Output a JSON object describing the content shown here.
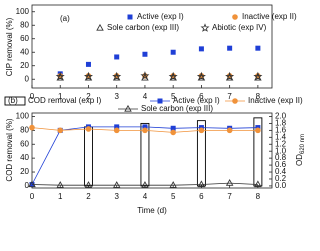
{
  "chart_data": [
    {
      "type": "scatter",
      "panel_label": "(a)",
      "ylabel": "CIP removal (%)",
      "x": [
        1,
        2,
        3,
        4,
        5,
        6,
        7,
        8
      ],
      "xlim": [
        0,
        8.5
      ],
      "xticks": [
        0,
        1,
        2,
        3,
        4,
        5,
        6,
        7,
        8
      ],
      "ylim": [
        -13,
        110
      ],
      "yticks": [
        0,
        20,
        40,
        60,
        80,
        100
      ],
      "series": [
        {
          "name": "Active (exp I)",
          "color": "#1f3fd6",
          "marker": "square",
          "values": [
            8,
            22,
            33,
            37,
            40,
            45,
            46,
            46
          ]
        },
        {
          "name": "Inactive (exp II)",
          "color": "#f0923a",
          "marker": "circle",
          "values": [
            5,
            5,
            5,
            5,
            5,
            5,
            5,
            5
          ]
        },
        {
          "name": "Sole carbon (exp III)",
          "color": "#333333",
          "marker": "triangle",
          "values": [
            2,
            2,
            2,
            2,
            2,
            2,
            2,
            2
          ]
        },
        {
          "name": "Abiotic (exp IV)",
          "color": "#333333",
          "marker": "star",
          "values": [
            4,
            4,
            4,
            5,
            4,
            4,
            4,
            4
          ]
        }
      ]
    },
    {
      "type": "combo",
      "panel_label": "(b)",
      "ylabel": "COD removal (%)",
      "xlabel": "Time (d)",
      "y2label": "OD",
      "y2label_sub": "620 nm",
      "x": [
        0,
        1,
        2,
        3,
        4,
        5,
        6,
        7,
        8
      ],
      "xlim": [
        0,
        8.5
      ],
      "xticks": [
        0,
        1,
        2,
        3,
        4,
        5,
        6,
        7,
        8
      ],
      "ylim": [
        -3,
        105
      ],
      "yticks": [
        0,
        20,
        40,
        60,
        80,
        100
      ],
      "y2lim": [
        -0.06,
        2.1
      ],
      "y2ticks": [
        {
          "value": 0,
          "label": "0.0"
        },
        {
          "value": 0.2,
          "label": "0.2"
        },
        {
          "value": 0.4,
          "label": "0.4"
        },
        {
          "value": 0.6,
          "label": "0.6"
        },
        {
          "value": 0.8,
          "label": "0.8"
        },
        {
          "value": 1,
          "label": "1.0"
        },
        {
          "value": 1.2,
          "label": "1.2"
        },
        {
          "value": 1.4,
          "label": "1.4"
        },
        {
          "value": 1.6,
          "label": "1.6"
        },
        {
          "value": 1.8,
          "label": "1.8"
        },
        {
          "value": 2,
          "label": "2.0"
        }
      ],
      "series": [
        {
          "name": "COD removal (exp I)",
          "color": "#000000",
          "marker": "bar",
          "values": [
            null,
            null,
            85,
            null,
            90,
            null,
            94,
            null,
            98
          ]
        },
        {
          "name": "Active (exp I)",
          "color": "#1f3fd6",
          "marker": "square",
          "line": true,
          "values": [
            2,
            80,
            85,
            85,
            85,
            83,
            84,
            83,
            84
          ]
        },
        {
          "name": "Inactive (exp II)",
          "color": "#f0923a",
          "marker": "circle",
          "line": true,
          "values": [
            84,
            80,
            82,
            80,
            80,
            77,
            80,
            80,
            80
          ]
        },
        {
          "name": "Sole carbon (exp III)",
          "color": "#333333",
          "marker": "triangle",
          "line": true,
          "values": [
            2,
            1,
            1,
            1,
            1,
            1,
            2,
            4,
            2
          ]
        }
      ]
    }
  ]
}
